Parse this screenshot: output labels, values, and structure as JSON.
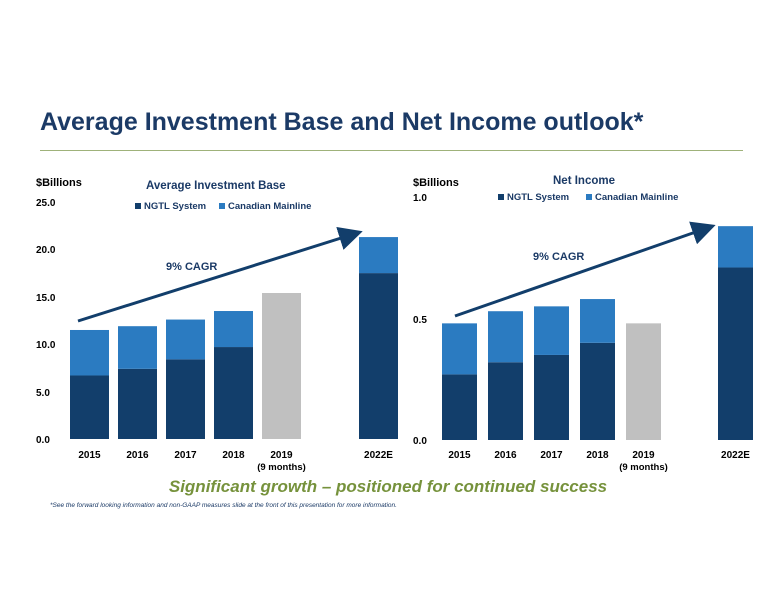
{
  "page": {
    "title": "Average Investment Base and Net Income outlook*",
    "tagline": "Significant growth – positioned for continued success",
    "footnote": "*See the forward looking information and non-GAAP measures slide at the front of this presentation for more information."
  },
  "colors": {
    "ngtl": "#123e6b",
    "mainline": "#2b7bc1",
    "estimate": "#c0c0c0",
    "title": "#1b3a66",
    "accent": "#76923c"
  },
  "chart_data": [
    {
      "type": "bar",
      "stacked": true,
      "title": "Average Investment Base",
      "ylabel": "$Billions",
      "ylim": [
        0,
        25
      ],
      "yticks": [
        "0.0",
        "5.0",
        "10.0",
        "15.0",
        "20.0",
        "25.0"
      ],
      "categories": [
        "2015",
        "2016",
        "2017",
        "2018",
        "2019",
        "2022E"
      ],
      "category_sublabels": [
        "",
        "",
        "",
        "",
        "(9 months)",
        ""
      ],
      "series": [
        {
          "name": "NGTL System",
          "values": [
            6.7,
            7.4,
            8.4,
            9.7,
            null,
            17.5
          ]
        },
        {
          "name": "Canadian Mainline",
          "values": [
            4.8,
            4.5,
            4.2,
            3.8,
            null,
            3.8
          ]
        }
      ],
      "total_only": [
        null,
        null,
        null,
        null,
        15.4,
        null
      ],
      "annotation": "9% CAGR",
      "legend": "top"
    },
    {
      "type": "bar",
      "stacked": true,
      "title": "Net Income",
      "ylabel": "$Billions",
      "ylim": [
        0,
        1.0
      ],
      "yticks": [
        "0.0",
        "0.5",
        "1.0"
      ],
      "categories": [
        "2015",
        "2016",
        "2017",
        "2018",
        "2019",
        "2022E"
      ],
      "category_sublabels": [
        "",
        "",
        "",
        "",
        "(9 months)",
        ""
      ],
      "series": [
        {
          "name": "NGTL System",
          "values": [
            0.27,
            0.32,
            0.35,
            0.4,
            null,
            0.71
          ]
        },
        {
          "name": "Canadian Mainline",
          "values": [
            0.21,
            0.21,
            0.2,
            0.18,
            null,
            0.17
          ]
        }
      ],
      "total_only": [
        null,
        null,
        null,
        null,
        0.48,
        null
      ],
      "annotation": "9% CAGR",
      "legend": "top"
    }
  ]
}
